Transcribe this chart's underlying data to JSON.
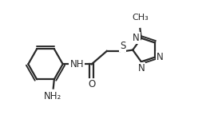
{
  "background_color": "#ffffff",
  "line_color": "#2a2a2a",
  "line_width": 1.6,
  "font_size": 8.5,
  "figsize": [
    2.78,
    1.69
  ],
  "dpi": 100,
  "xlim": [
    0,
    10
  ],
  "ylim": [
    0,
    6
  ]
}
